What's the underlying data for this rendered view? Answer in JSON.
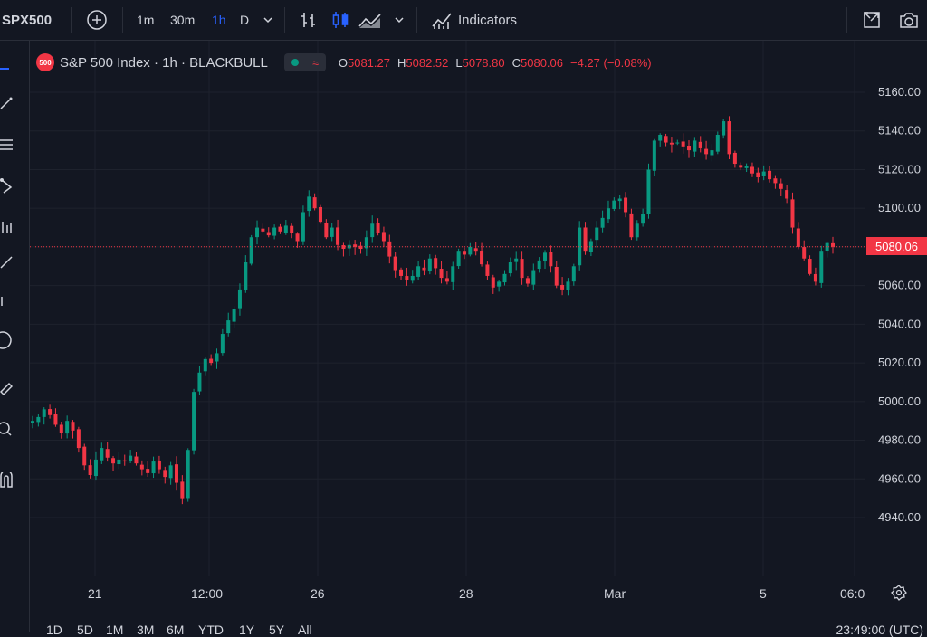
{
  "toolbar": {
    "symbol": "SPX500",
    "intervals": [
      "1m",
      "30m",
      "1h",
      "D"
    ],
    "active_interval": "1h",
    "indicators_label": "Indicators",
    "icons": [
      "plus-circle-icon",
      "chevron-down-icon",
      "bar-chart-icon",
      "candles-icon",
      "area-chart-icon",
      "chevron-down-icon",
      "indicators-icon",
      "fullscreen-icon",
      "camera-icon"
    ]
  },
  "legend": {
    "badge": "500",
    "title": "S&P 500 Index · 1h · BLACKBULL",
    "open_label": "O",
    "open": "5081.27",
    "high_label": "H",
    "high": "5082.52",
    "low_label": "L",
    "low": "5078.80",
    "close_label": "C",
    "close": "5080.06",
    "change": "−4.27 (−0.08%)"
  },
  "price_axis": {
    "ticks": [
      "5160.00",
      "5140.00",
      "5120.00",
      "5100.00",
      "5080.00",
      "5060.00",
      "5040.00",
      "5020.00",
      "5000.00",
      "4980.00",
      "4960.00",
      "4940.00"
    ],
    "current_price": "5080.06"
  },
  "time_axis": {
    "labels": [
      "21",
      "12:00",
      "26",
      "28",
      "Mar",
      "5",
      "06:0"
    ]
  },
  "bottom": {
    "ranges": [
      "1D",
      "5D",
      "1M",
      "3M",
      "6M",
      "YTD",
      "1Y",
      "5Y",
      "All"
    ],
    "time": "23:49:00 (UTC)"
  },
  "colors": {
    "background": "#131722",
    "up": "#089981",
    "down": "#f23645",
    "grid": "#1e222d",
    "active_interval": "#2962ff"
  },
  "chart_data": {
    "type": "candlestick",
    "title": "S&P 500 Index · 1h · BLACKBULL",
    "ylim": [
      4930,
      5170
    ],
    "y_ticks": [
      4940,
      4960,
      4980,
      5000,
      5020,
      5040,
      5060,
      5080,
      5100,
      5120,
      5140,
      5160
    ],
    "x_tick_labels": [
      "21",
      "12:00",
      "26",
      "28",
      "Mar",
      "5",
      "06:0"
    ],
    "grid": true,
    "last_price": 5080.06,
    "close_path": [
      4990,
      4992,
      4996,
      4993,
      4988,
      4984,
      4990,
      4985,
      4976,
      4967,
      4962,
      4970,
      4976,
      4971,
      4968,
      4970,
      4969,
      4972,
      4968,
      4965,
      4963,
      4969,
      4965,
      4961,
      4967,
      4958,
      4950,
      4975,
      5005,
      5015,
      5022,
      5020,
      5025,
      5035,
      5042,
      5048,
      5058,
      5072,
      5085,
      5090,
      5088,
      5086,
      5090,
      5088,
      5091,
      5087,
      5083,
      5098,
      5106,
      5100,
      5093,
      5085,
      5090,
      5081,
      5079,
      5081,
      5080,
      5079,
      5085,
      5092,
      5087,
      5083,
      5075,
      5068,
      5065,
      5063,
      5065,
      5070,
      5068,
      5074,
      5069,
      5064,
      5062,
      5070,
      5078,
      5076,
      5080,
      5078,
      5071,
      5065,
      5059,
      5062,
      5066,
      5072,
      5074,
      5064,
      5061,
      5068,
      5073,
      5077,
      5070,
      5060,
      5058,
      5062,
      5070,
      5090,
      5078,
      5083,
      5090,
      5095,
      5100,
      5104,
      5105,
      5098,
      5085,
      5092,
      5097,
      5120,
      5135,
      5138,
      5134,
      5133,
      5134,
      5132,
      5130,
      5135,
      5131,
      5128,
      5130,
      5138,
      5145,
      5128,
      5123,
      5121,
      5122,
      5118,
      5116,
      5119,
      5115,
      5113,
      5110,
      5105,
      5090,
      5080,
      5074,
      5066,
      5062,
      5078,
      5082,
      5080
    ]
  }
}
